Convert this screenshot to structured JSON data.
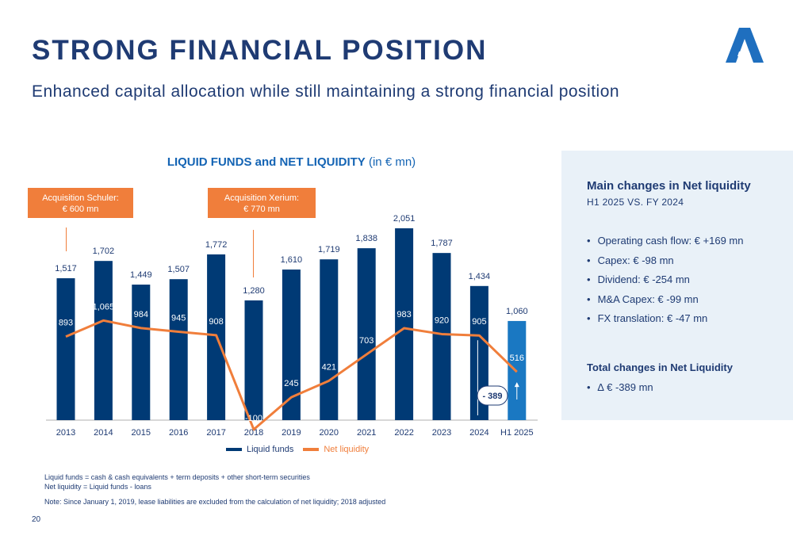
{
  "page": {
    "title": "STRONG FINANCIAL POSITION",
    "subtitle": "Enhanced capital allocation while still maintaining a strong financial position",
    "page_number": "20",
    "brand_color": "#1f3b73",
    "logo_icon": "stylized-a-logo-icon"
  },
  "chart_data": {
    "type": "bar",
    "title_bold": "LIQUID FUNDS and NET LIQUIDITY",
    "title_unit": "(in € mn)",
    "categories": [
      "2013",
      "2014",
      "2015",
      "2016",
      "2017",
      "2018",
      "2019",
      "2020",
      "2021",
      "2022",
      "2023",
      "2024",
      "H1 2025"
    ],
    "series": [
      {
        "name": "Liquid funds",
        "kind": "bar",
        "color": "#003a75",
        "highlight_color": "#1a78c2",
        "values": [
          1517,
          1702,
          1449,
          1507,
          1772,
          1280,
          1610,
          1719,
          1838,
          2051,
          1787,
          1434,
          1060
        ],
        "labels": [
          "1,517",
          "1,702",
          "1,449",
          "1,507",
          "1,772",
          "1,280",
          "1,610",
          "1,719",
          "1,838",
          "2,051",
          "1,787",
          "1,434",
          "1,060"
        ]
      },
      {
        "name": "Net liquidity",
        "kind": "line",
        "color": "#f07e3b",
        "values": [
          893,
          1065,
          984,
          945,
          908,
          -100,
          245,
          421,
          703,
          983,
          920,
          905,
          516
        ],
        "labels": [
          "893",
          "1,065",
          "984",
          "945",
          "908",
          "-100",
          "245",
          "421",
          "703",
          "983",
          "920",
          "905",
          "516"
        ]
      }
    ],
    "ylim": [
      -100,
      2051
    ],
    "grid": false,
    "legend": "bottom",
    "annotations": [
      {
        "text": "Acquisition Schuler:\n€ 600 mn",
        "category": "2013"
      },
      {
        "text": "Acquisition Xerium:\n€ 770 mn",
        "category": "2018"
      },
      {
        "text": "- 389",
        "category": "H1 2025"
      }
    ]
  },
  "callouts": {
    "schuler_line1": "Acquisition Schuler:",
    "schuler_line2": "€ 600 mn",
    "xerium_line1": "Acquisition Xerium:",
    "xerium_line2": "€ 770 mn",
    "color": "#f07e3b"
  },
  "panel": {
    "heading": "Main changes in Net liquidity",
    "subheading": "H1 2025 VS. FY 2024",
    "items": [
      "Operating cash flow: € +169 mn",
      "Capex: € -98 mn",
      "Dividend: € -254 mn",
      "M&A Capex: € -99 mn",
      "FX translation: € -47 mn"
    ],
    "total_heading": "Total changes in Net Liquidity",
    "total_items": [
      "∆ € -389 mn"
    ],
    "background": "#e9f1f8"
  },
  "footnotes": {
    "line1": "Liquid funds = cash & cash equivalents + term deposits + other short-term securities",
    "line2": "Net liquidity = Liquid funds - loans",
    "note": "Note: Since January 1, 2019, lease liabilities are excluded from the calculation of net liquidity; 2018 adjusted"
  }
}
